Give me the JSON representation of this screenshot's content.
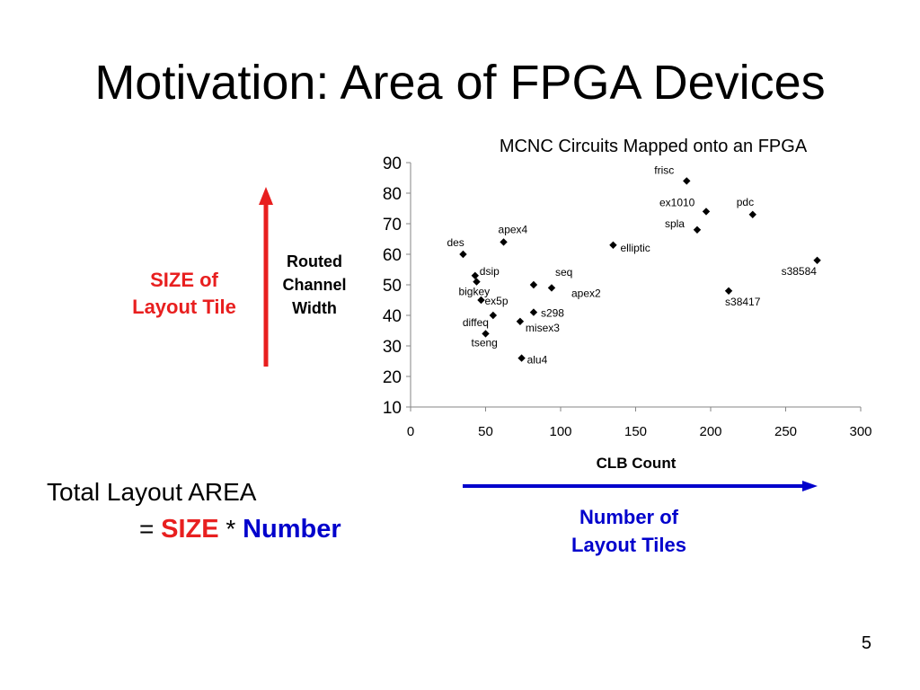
{
  "slide": {
    "title": "Motivation: Area of FPGA Devices",
    "page_number": "5"
  },
  "annotations": {
    "size_label_line1": "SIZE of",
    "size_label_line2": "Layout Tile",
    "routed_label_line1": "Routed",
    "routed_label_line2": "Channel",
    "routed_label_line3": "Width",
    "number_label_line1": "Number of",
    "number_label_line2": "Layout Tiles",
    "size_arrow_color": "#e81f1f",
    "number_arrow_color": "#0000cc"
  },
  "formula": {
    "line1": "Total Layout AREA",
    "equals": "=",
    "size_word": "SIZE",
    "times": "*",
    "number_word": "Number",
    "size_color": "#e81f1f",
    "number_color": "#0000cc"
  },
  "chart_data": {
    "type": "scatter",
    "title": "MCNC Circuits Mapped onto an FPGA",
    "xlabel": "CLB Count",
    "ylabel": "",
    "xlim": [
      0,
      300
    ],
    "ylim": [
      10,
      90
    ],
    "x_ticks": [
      0,
      50,
      100,
      150,
      200,
      250,
      300
    ],
    "y_ticks": [
      10,
      20,
      30,
      40,
      50,
      60,
      70,
      80,
      90
    ],
    "grid": false,
    "legend": "none",
    "marker": "diamond",
    "marker_color": "#000000",
    "points": [
      {
        "label": "frisc",
        "x": 184,
        "y": 84
      },
      {
        "label": "ex1010",
        "x": 197,
        "y": 74
      },
      {
        "label": "pdc",
        "x": 228,
        "y": 73
      },
      {
        "label": "spla",
        "x": 191,
        "y": 68
      },
      {
        "label": "apex4",
        "x": 62,
        "y": 64
      },
      {
        "label": "elliptic",
        "x": 135,
        "y": 63
      },
      {
        "label": "des",
        "x": 35,
        "y": 60
      },
      {
        "label": "s38584",
        "x": 271,
        "y": 58
      },
      {
        "label": "dsip",
        "x": 43,
        "y": 53
      },
      {
        "label": "bigkey",
        "x": 44,
        "y": 51
      },
      {
        "label": "seq",
        "x": 82,
        "y": 50
      },
      {
        "label": "apex2",
        "x": 94,
        "y": 49
      },
      {
        "label": "s38417",
        "x": 212,
        "y": 48
      },
      {
        "label": "ex5p",
        "x": 47,
        "y": 45
      },
      {
        "label": "s298",
        "x": 82,
        "y": 41
      },
      {
        "label": "diffeq",
        "x": 55,
        "y": 40
      },
      {
        "label": "misex3",
        "x": 73,
        "y": 38
      },
      {
        "label": "tseng",
        "x": 50,
        "y": 34
      },
      {
        "label": "alu4",
        "x": 74,
        "y": 26
      }
    ]
  }
}
